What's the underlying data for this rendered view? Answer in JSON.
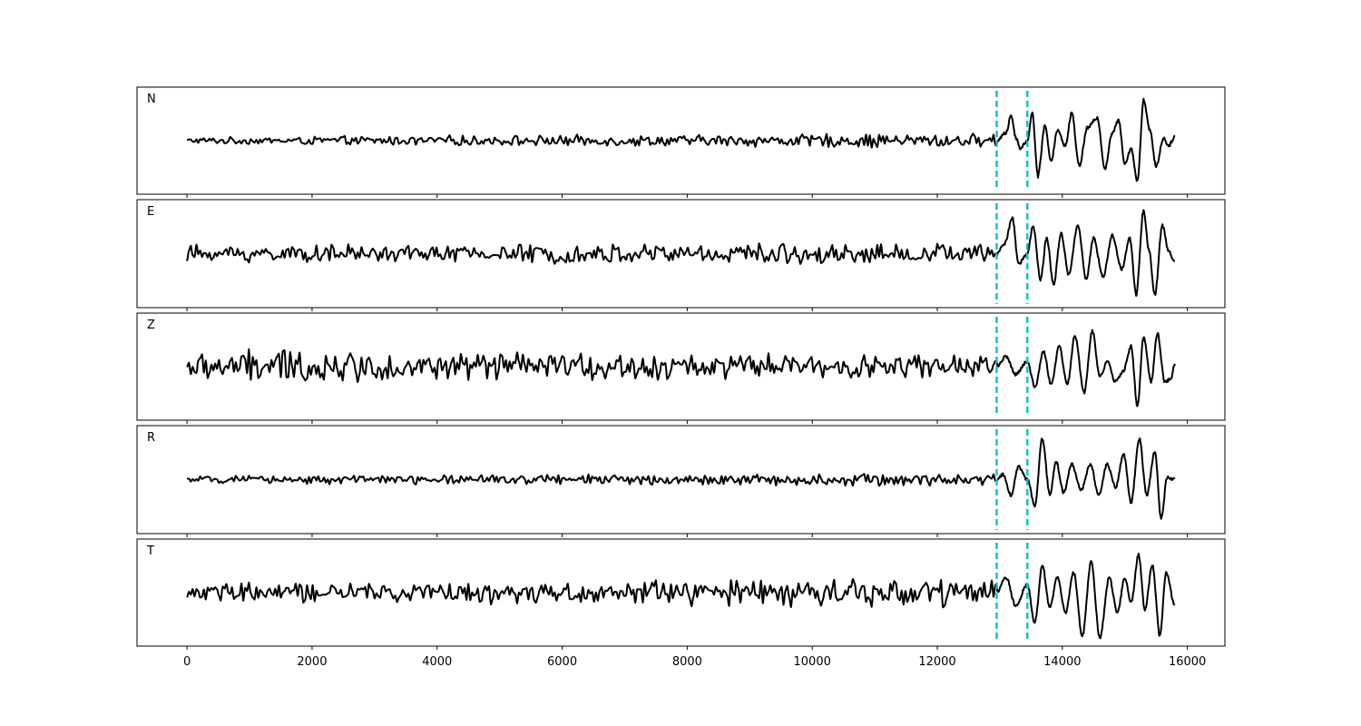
{
  "chart_data": {
    "type": "line",
    "title": "",
    "xlabel": "",
    "ylabel": "",
    "xlim": [
      -800,
      16600
    ],
    "ylim": [
      -1,
      1
    ],
    "x_ticks": [
      0,
      2000,
      4000,
      6000,
      8000,
      10000,
      12000,
      14000,
      16000
    ],
    "x_tick_labels": [
      "0",
      "2000",
      "4000",
      "6000",
      "8000",
      "10000",
      "12000",
      "14000",
      "16000"
    ],
    "x_range": [
      0,
      15800
    ],
    "pick_lines": {
      "color": "#17becf",
      "style": "dashed",
      "x": [
        12950,
        13440
      ]
    },
    "grid": false,
    "legend": "none",
    "series": [
      {
        "name": "N",
        "noise": [
          [
            0,
            0.05
          ],
          [
            4000,
            0.08
          ],
          [
            8000,
            0.09
          ],
          [
            12000,
            0.12
          ],
          [
            12900,
            0.1
          ]
        ],
        "waves": [
          [
            12950,
            0
          ],
          [
            13100,
            0.15
          ],
          [
            13180,
            0.5
          ],
          [
            13260,
            0.05
          ],
          [
            13330,
            -0.15
          ],
          [
            13440,
            0
          ],
          [
            13520,
            0.55
          ],
          [
            13610,
            -0.7
          ],
          [
            13720,
            0.3
          ],
          [
            13820,
            -0.4
          ],
          [
            13920,
            0.2
          ],
          [
            14050,
            -0.1
          ],
          [
            14150,
            0.55
          ],
          [
            14270,
            -0.5
          ],
          [
            14400,
            0.25
          ],
          [
            14560,
            0.45
          ],
          [
            14680,
            -0.55
          ],
          [
            14800,
            0.15
          ],
          [
            14900,
            0.4
          ],
          [
            15000,
            -0.45
          ],
          [
            15100,
            -0.15
          ],
          [
            15200,
            -0.8
          ],
          [
            15300,
            0.8
          ],
          [
            15400,
            0.2
          ],
          [
            15500,
            -0.5
          ],
          [
            15620,
            0.05
          ],
          [
            15700,
            -0.1
          ],
          [
            15800,
            0.08
          ]
        ]
      },
      {
        "name": "E",
        "noise": [
          [
            0,
            0.14
          ],
          [
            4000,
            0.14
          ],
          [
            8000,
            0.16
          ],
          [
            12000,
            0.16
          ],
          [
            12900,
            0.15
          ]
        ],
        "waves": [
          [
            12950,
            0
          ],
          [
            13080,
            0.2
          ],
          [
            13200,
            0.7
          ],
          [
            13300,
            -0.2
          ],
          [
            13440,
            0
          ],
          [
            13530,
            0.55
          ],
          [
            13650,
            -0.5
          ],
          [
            13750,
            0.3
          ],
          [
            13860,
            -0.6
          ],
          [
            13980,
            0.4
          ],
          [
            14100,
            -0.4
          ],
          [
            14250,
            0.55
          ],
          [
            14380,
            -0.5
          ],
          [
            14500,
            0.3
          ],
          [
            14650,
            -0.45
          ],
          [
            14800,
            0.35
          ],
          [
            14950,
            -0.3
          ],
          [
            15080,
            0.3
          ],
          [
            15180,
            -0.8
          ],
          [
            15300,
            0.85
          ],
          [
            15380,
            0.1
          ],
          [
            15480,
            -0.8
          ],
          [
            15600,
            0.55
          ],
          [
            15700,
            0.05
          ],
          [
            15800,
            -0.15
          ]
        ]
      },
      {
        "name": "Z",
        "noise": [
          [
            0,
            0.2
          ],
          [
            1500,
            0.3
          ],
          [
            3000,
            0.22
          ],
          [
            6000,
            0.22
          ],
          [
            9000,
            0.2
          ],
          [
            12900,
            0.18
          ]
        ],
        "waves": [
          [
            12950,
            0
          ],
          [
            13100,
            0.2
          ],
          [
            13250,
            -0.15
          ],
          [
            13440,
            0.1
          ],
          [
            13560,
            -0.4
          ],
          [
            13700,
            0.3
          ],
          [
            13820,
            -0.35
          ],
          [
            13950,
            0.4
          ],
          [
            14080,
            -0.35
          ],
          [
            14200,
            0.6
          ],
          [
            14350,
            -0.5
          ],
          [
            14480,
            0.7
          ],
          [
            14600,
            -0.2
          ],
          [
            14720,
            0.1
          ],
          [
            14850,
            -0.3
          ],
          [
            14970,
            -0.1
          ],
          [
            15100,
            0.4
          ],
          [
            15200,
            -0.8
          ],
          [
            15300,
            0.6
          ],
          [
            15420,
            -0.3
          ],
          [
            15520,
            0.65
          ],
          [
            15640,
            -0.3
          ],
          [
            15730,
            -0.25
          ],
          [
            15800,
            0.05
          ]
        ]
      },
      {
        "name": "R",
        "noise": [
          [
            0,
            0.05
          ],
          [
            4000,
            0.08
          ],
          [
            8000,
            0.08
          ],
          [
            12000,
            0.1
          ],
          [
            12900,
            0.08
          ]
        ],
        "waves": [
          [
            12950,
            0
          ],
          [
            13050,
            0.1
          ],
          [
            13180,
            -0.3
          ],
          [
            13300,
            0.25
          ],
          [
            13440,
            0
          ],
          [
            13560,
            -0.5
          ],
          [
            13680,
            0.8
          ],
          [
            13800,
            -0.3
          ],
          [
            13900,
            0.35
          ],
          [
            14020,
            -0.25
          ],
          [
            14150,
            0.3
          ],
          [
            14300,
            -0.2
          ],
          [
            14450,
            0.3
          ],
          [
            14580,
            -0.3
          ],
          [
            14720,
            0.3
          ],
          [
            14850,
            -0.15
          ],
          [
            14980,
            0.5
          ],
          [
            15100,
            -0.45
          ],
          [
            15230,
            0.8
          ],
          [
            15350,
            -0.3
          ],
          [
            15480,
            0.55
          ],
          [
            15580,
            -0.75
          ],
          [
            15680,
            0.05
          ],
          [
            15800,
            0.0
          ]
        ]
      },
      {
        "name": "T",
        "noise": [
          [
            0,
            0.15
          ],
          [
            4000,
            0.17
          ],
          [
            8000,
            0.2
          ],
          [
            12000,
            0.25
          ],
          [
            12900,
            0.2
          ]
        ],
        "waves": [
          [
            12950,
            0
          ],
          [
            13100,
            0.3
          ],
          [
            13250,
            -0.25
          ],
          [
            13440,
            0.15
          ],
          [
            13560,
            -0.6
          ],
          [
            13680,
            0.55
          ],
          [
            13800,
            -0.3
          ],
          [
            13920,
            0.3
          ],
          [
            14050,
            -0.4
          ],
          [
            14180,
            0.4
          ],
          [
            14320,
            -0.85
          ],
          [
            14460,
            0.6
          ],
          [
            14600,
            -0.9
          ],
          [
            14750,
            0.3
          ],
          [
            14880,
            -0.4
          ],
          [
            15000,
            0.3
          ],
          [
            15100,
            -0.2
          ],
          [
            15220,
            0.75
          ],
          [
            15320,
            -0.35
          ],
          [
            15440,
            0.55
          ],
          [
            15560,
            -0.85
          ],
          [
            15660,
            0.4
          ],
          [
            15800,
            -0.25
          ]
        ]
      }
    ]
  }
}
